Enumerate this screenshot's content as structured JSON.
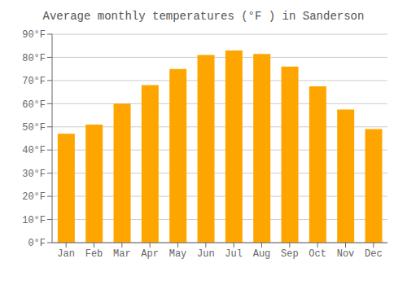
{
  "chart_data": {
    "type": "bar",
    "title": "Average monthly temperatures (°F ) in Sanderson",
    "categories": [
      "Jan",
      "Feb",
      "Mar",
      "Apr",
      "May",
      "Jun",
      "Jul",
      "Aug",
      "Sep",
      "Oct",
      "Nov",
      "Dec"
    ],
    "values": [
      47,
      51,
      60,
      68,
      75,
      81,
      83,
      81.5,
      76,
      67.5,
      57.5,
      49
    ],
    "color": "#FFA500",
    "ylim": [
      0,
      90
    ],
    "yticks": [
      {
        "value": 0,
        "label": "0°F"
      },
      {
        "value": 10,
        "label": "10°F"
      },
      {
        "value": 20,
        "label": "20°F"
      },
      {
        "value": 30,
        "label": "30°F"
      },
      {
        "value": 40,
        "label": "40°F"
      },
      {
        "value": 50,
        "label": "50°F"
      },
      {
        "value": 60,
        "label": "60°F"
      },
      {
        "value": 70,
        "label": "70°F"
      },
      {
        "value": 80,
        "label": "80°F"
      },
      {
        "value": 90,
        "label": "90°F"
      }
    ],
    "grid": true
  }
}
